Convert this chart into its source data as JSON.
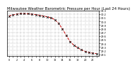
{
  "title": "Milwaukee Weather Barometric Pressure per Hour (Last 24 Hours)",
  "hours": [
    0,
    1,
    2,
    3,
    4,
    5,
    6,
    7,
    8,
    9,
    10,
    11,
    12,
    13,
    14,
    15,
    16,
    17,
    18,
    19,
    20,
    21,
    22,
    23
  ],
  "pressure": [
    30.15,
    30.18,
    30.2,
    30.22,
    30.22,
    30.21,
    30.2,
    30.19,
    30.17,
    30.15,
    30.13,
    30.1,
    30.05,
    29.95,
    29.8,
    29.62,
    29.45,
    29.35,
    29.28,
    29.22,
    29.18,
    29.15,
    29.13,
    29.12
  ],
  "line_color": "#cc0000",
  "marker_color": "#000000",
  "bg_color": "#ffffff",
  "grid_color": "#888888",
  "ylim_min": 29.05,
  "ylim_max": 30.3,
  "ytick_values": [
    29.1,
    29.2,
    29.3,
    29.4,
    29.5,
    29.6,
    29.7,
    29.8,
    29.9,
    30.0,
    30.1,
    30.2,
    30.3
  ],
  "title_fontsize": 3.8,
  "tick_fontsize": 2.5,
  "line_width": 0.7,
  "marker_size": 2.0,
  "marker_every": 1
}
